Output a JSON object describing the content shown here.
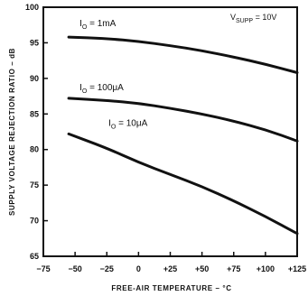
{
  "chart_data": {
    "type": "line",
    "xlabel": "FREE-AIR TEMPERATURE – °C",
    "ylabel": "SUPPLY VOLTAGE REJECTION RATIO – dB",
    "xlim": [
      -75,
      125
    ],
    "ylim": [
      65,
      100
    ],
    "x_ticks": [
      -75,
      -50,
      -25,
      0,
      25,
      50,
      75,
      100,
      125
    ],
    "x_tick_labels": [
      "−75",
      "−50",
      "−25",
      "0",
      "+25",
      "+50",
      "+75",
      "+100",
      "+125"
    ],
    "y_ticks": [
      65,
      70,
      75,
      80,
      85,
      90,
      95,
      100
    ],
    "y_tick_labels": [
      "65",
      "70",
      "75",
      "80",
      "85",
      "90",
      "95",
      "100"
    ],
    "grid": false,
    "annotation": {
      "main": "V",
      "sub": "SUPP",
      "suffix": " = 10V"
    },
    "series": [
      {
        "name": "I_O = 1mA",
        "label_main": "I",
        "label_sub": "O",
        "label_suffix": " = 1mA",
        "x": [
          -55,
          -25,
          0,
          25,
          50,
          75,
          100,
          125
        ],
        "y": [
          95.8,
          95.6,
          95.2,
          94.6,
          93.9,
          93.0,
          92.0,
          90.8
        ]
      },
      {
        "name": "I_O = 100μA",
        "label_main": "I",
        "label_sub": "O",
        "label_suffix": " = 100μA",
        "x": [
          -55,
          -25,
          0,
          25,
          50,
          75,
          100,
          125
        ],
        "y": [
          87.2,
          86.9,
          86.5,
          85.8,
          85.0,
          84.0,
          82.8,
          81.2
        ]
      },
      {
        "name": "I_O = 10μA",
        "label_main": "I",
        "label_sub": "O",
        "label_suffix": " = 10μA",
        "x": [
          -55,
          -25,
          0,
          25,
          50,
          75,
          100,
          125
        ],
        "y": [
          82.2,
          80.2,
          78.2,
          76.5,
          74.8,
          72.8,
          70.6,
          68.2
        ]
      }
    ]
  }
}
